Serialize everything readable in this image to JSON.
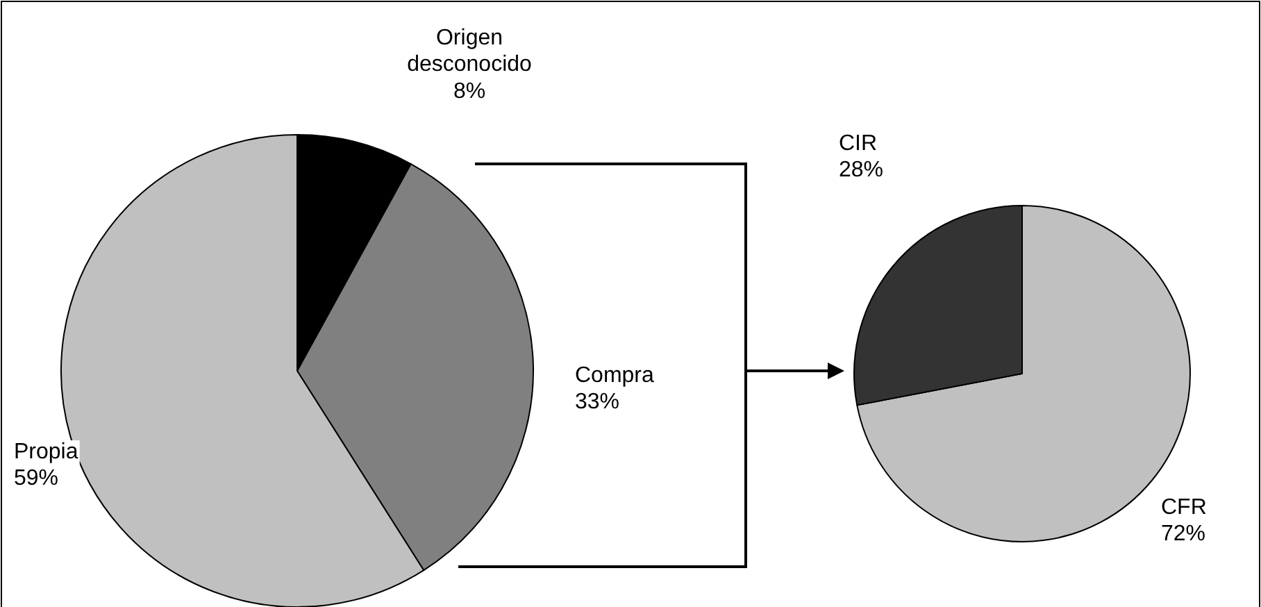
{
  "chart_data": [
    {
      "type": "pie",
      "categories": [
        "Origen desconocido",
        "Compra",
        "Propia"
      ],
      "values": [
        8,
        33,
        59
      ],
      "colors": [
        "#000000",
        "#808080",
        "#c0c0c0"
      ],
      "value_labels": [
        "8%",
        "33%",
        "59%"
      ]
    },
    {
      "type": "pie",
      "categories": [
        "CFR",
        "CIR"
      ],
      "values": [
        72,
        28
      ],
      "colors": [
        "#c0c0c0",
        "#333333"
      ],
      "value_labels": [
        "72%",
        "28%"
      ]
    }
  ]
}
